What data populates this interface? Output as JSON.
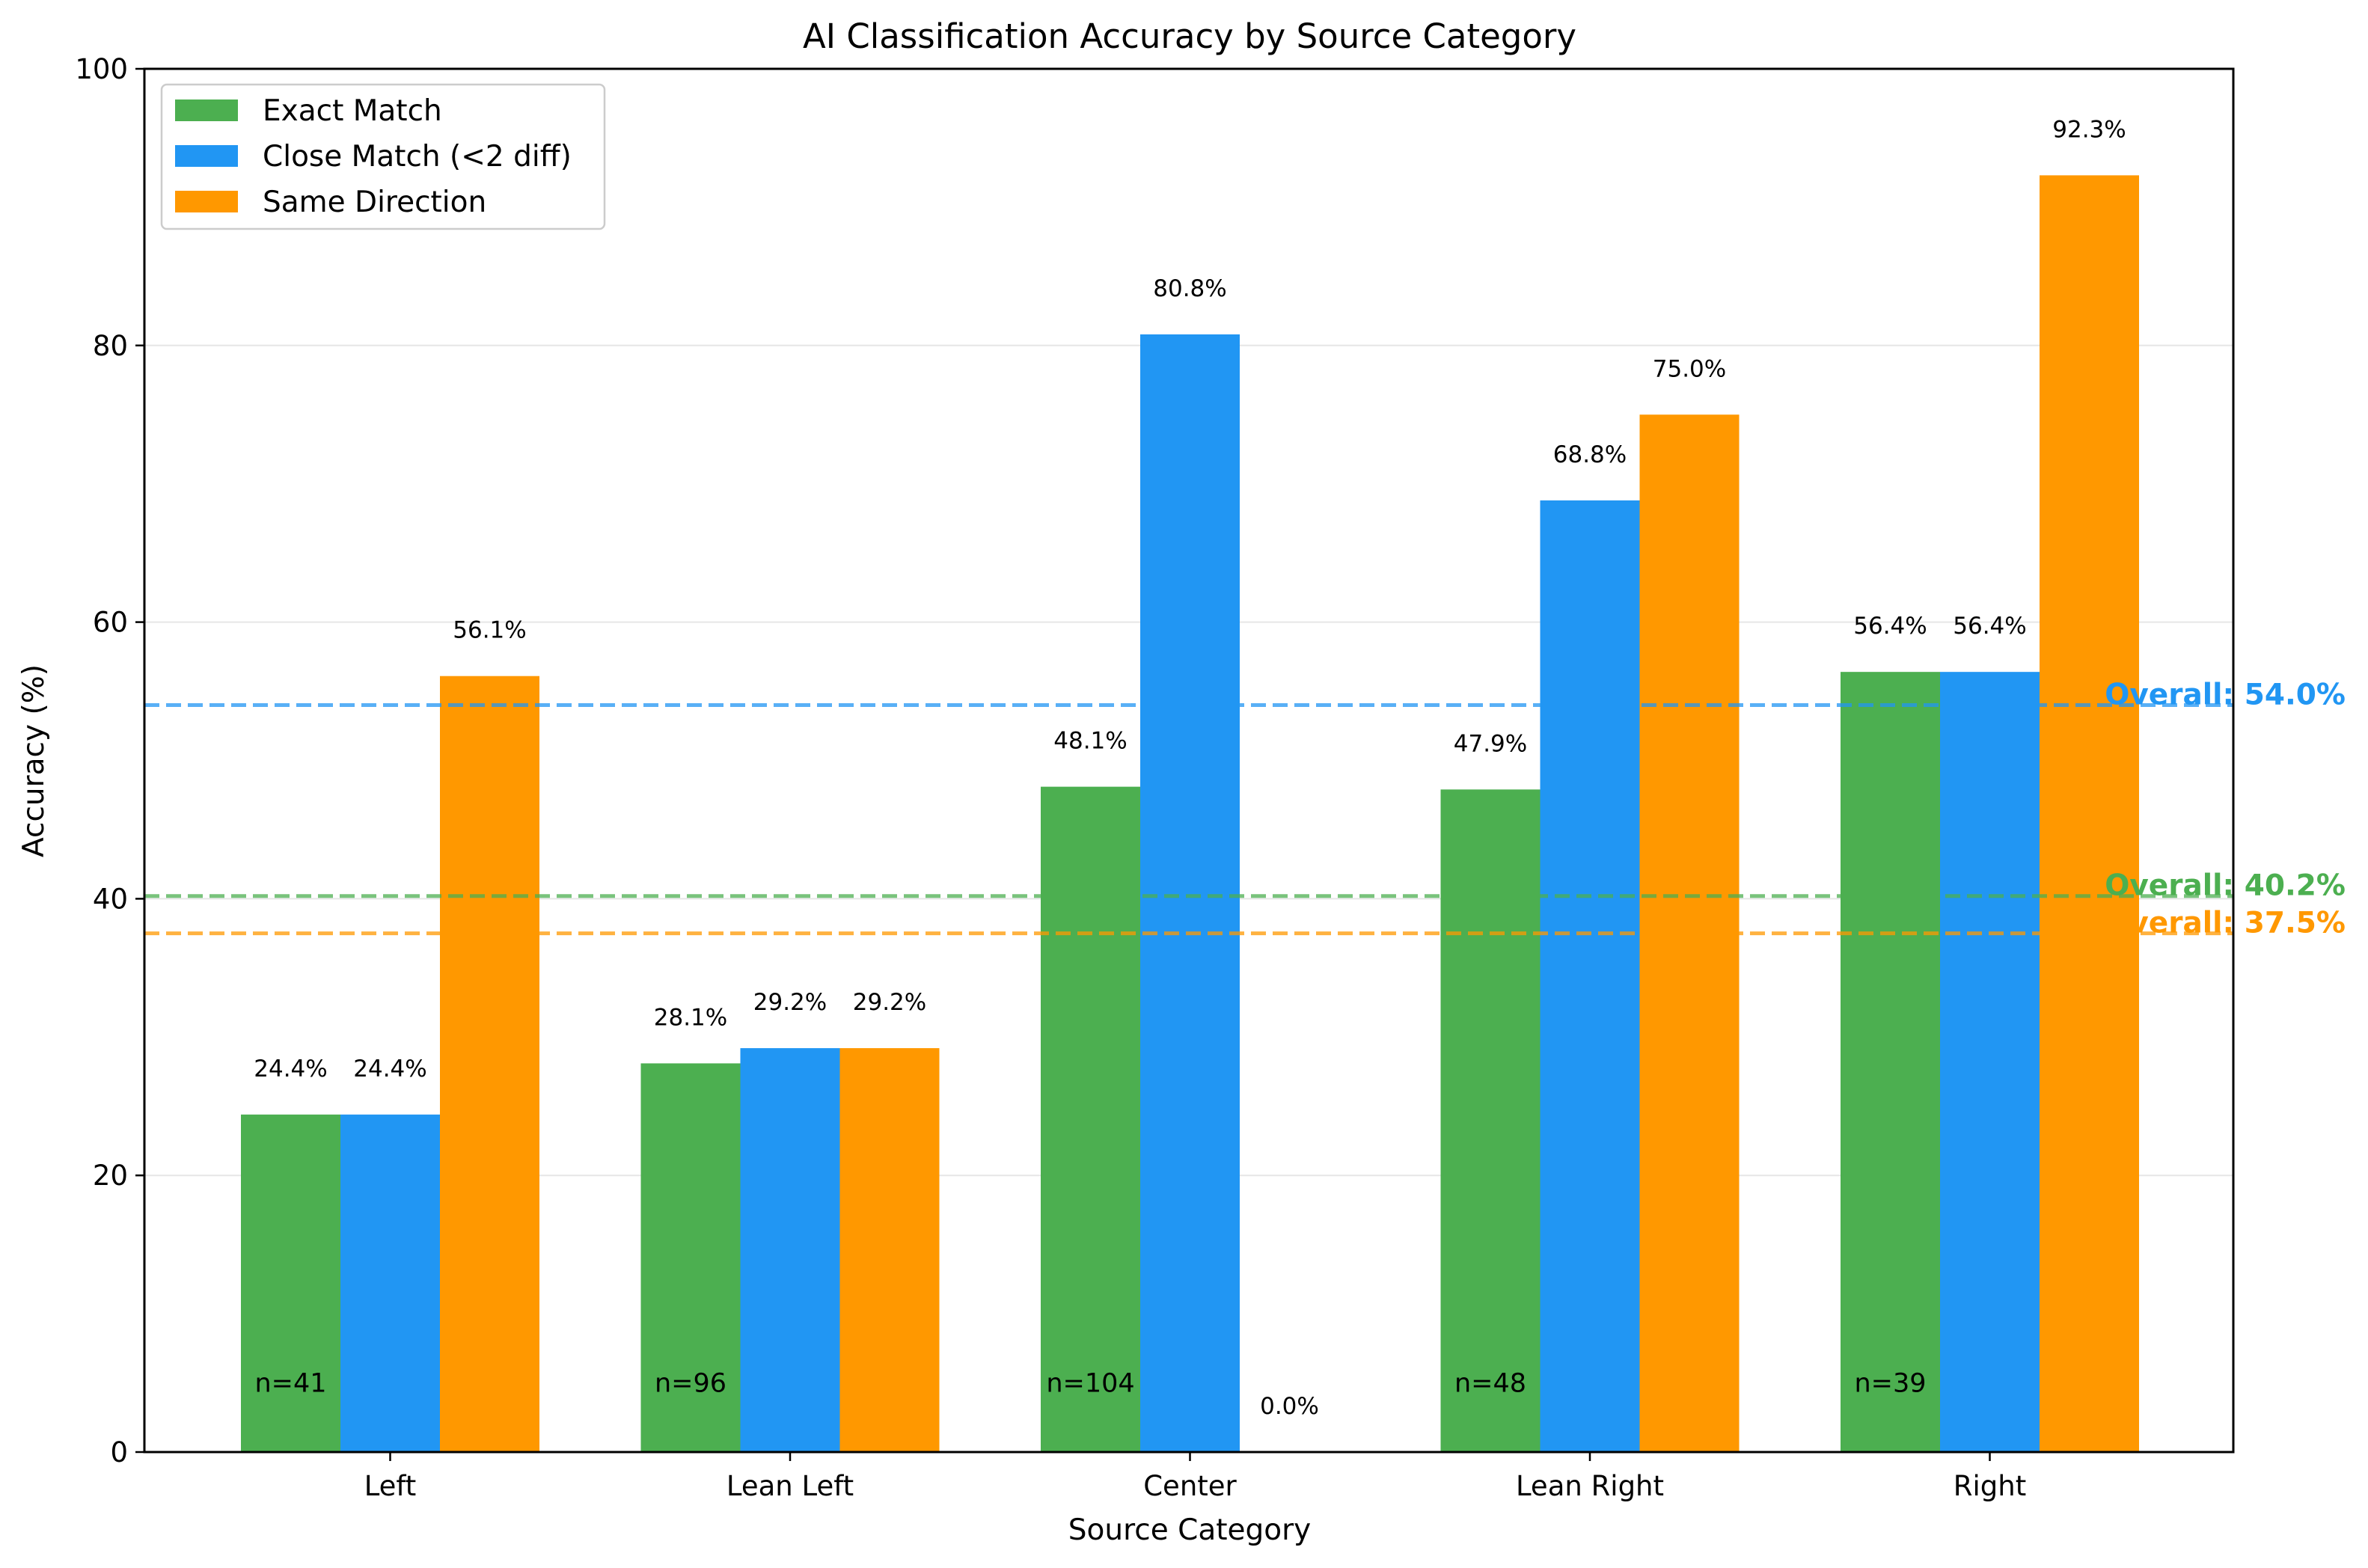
{
  "chart_data": {
    "type": "bar",
    "title": "AI Classification Accuracy by Source Category",
    "xlabel": "Source Category",
    "ylabel": "Accuracy (%)",
    "ylim": [
      0,
      100
    ],
    "yticks": [
      0,
      20,
      40,
      60,
      80,
      100
    ],
    "grid": "horizontal",
    "legend_position": "top-left",
    "categories": [
      "Left",
      "Lean Left",
      "Center",
      "Lean Right",
      "Right"
    ],
    "sample_sizes": [
      "n=41",
      "n=96",
      "n=104",
      "n=48",
      "n=39"
    ],
    "series": [
      {
        "name": "Exact Match",
        "color": "#4caf50",
        "values": [
          24.4,
          28.1,
          48.1,
          47.9,
          56.4
        ],
        "labels": [
          "24.4%",
          "28.1%",
          "48.1%",
          "47.9%",
          "56.4%"
        ]
      },
      {
        "name": "Close Match (<2 diff)",
        "color": "#2196f3",
        "values": [
          24.4,
          29.2,
          80.8,
          68.8,
          56.4
        ],
        "labels": [
          "24.4%",
          "29.2%",
          "80.8%",
          "68.8%",
          "56.4%"
        ]
      },
      {
        "name": "Same Direction",
        "color": "#ff9800",
        "values": [
          56.1,
          29.2,
          0.0,
          75.0,
          92.3
        ],
        "labels": [
          "56.1%",
          "29.2%",
          "0.0%",
          "75.0%",
          "92.3%"
        ]
      }
    ],
    "overall_lines": [
      {
        "series": "Close Match (<2 diff)",
        "value": 54.0,
        "label": "Overall: 54.0%",
        "color": "#2196f3"
      },
      {
        "series": "Exact Match",
        "value": 40.2,
        "label": "Overall: 40.2%",
        "color": "#4caf50"
      },
      {
        "series": "Same Direction",
        "value": 37.5,
        "label": "Overall: 37.5%",
        "color": "#ff9800"
      }
    ]
  }
}
